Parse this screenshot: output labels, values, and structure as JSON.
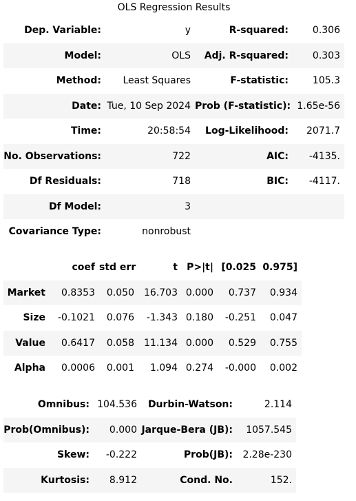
{
  "caption": "OLS Regression Results",
  "summary": {
    "rows": [
      [
        "Dep. Variable:",
        "y",
        "R-squared:",
        "0.306"
      ],
      [
        "Model:",
        "OLS",
        "Adj. R-squared:",
        "0.303"
      ],
      [
        "Method:",
        "Least Squares",
        "F-statistic:",
        "105.3"
      ],
      [
        "Date:",
        "Tue, 10 Sep 2024",
        "Prob (F-statistic):",
        "1.65e-56"
      ],
      [
        "Time:",
        "20:58:54",
        "Log-Likelihood:",
        "2071.7"
      ],
      [
        "No. Observations:",
        "722",
        "AIC:",
        "-4135."
      ],
      [
        "Df Residuals:",
        "718",
        "BIC:",
        "-4117."
      ],
      [
        "Df Model:",
        "3"
      ],
      [
        "Covariance Type:",
        "nonrobust"
      ]
    ]
  },
  "coefficients": {
    "header": [
      "coef",
      "std err",
      "t",
      "P>|t|",
      "[0.025",
      "0.975]"
    ],
    "rows": [
      [
        "Market",
        "0.8353",
        "0.050",
        "16.703",
        "0.000",
        "0.737",
        "0.934"
      ],
      [
        "Size",
        "-0.1021",
        "0.076",
        "-1.343",
        "0.180",
        "-0.251",
        "0.047"
      ],
      [
        "Value",
        "0.6417",
        "0.058",
        "11.134",
        "0.000",
        "0.529",
        "0.755"
      ],
      [
        "Alpha",
        "0.0006",
        "0.001",
        "1.094",
        "0.274",
        "-0.000",
        "0.002"
      ]
    ]
  },
  "diagnostics": {
    "rows": [
      [
        "Omnibus:",
        "104.536",
        "Durbin-Watson:",
        "2.114"
      ],
      [
        "Prob(Omnibus):",
        "0.000",
        "Jarque-Bera (JB):",
        "1057.545"
      ],
      [
        "Skew:",
        "-0.222",
        "Prob(JB):",
        "2.28e-230"
      ],
      [
        "Kurtosis:",
        "8.912",
        "Cond. No.",
        "152."
      ]
    ]
  }
}
